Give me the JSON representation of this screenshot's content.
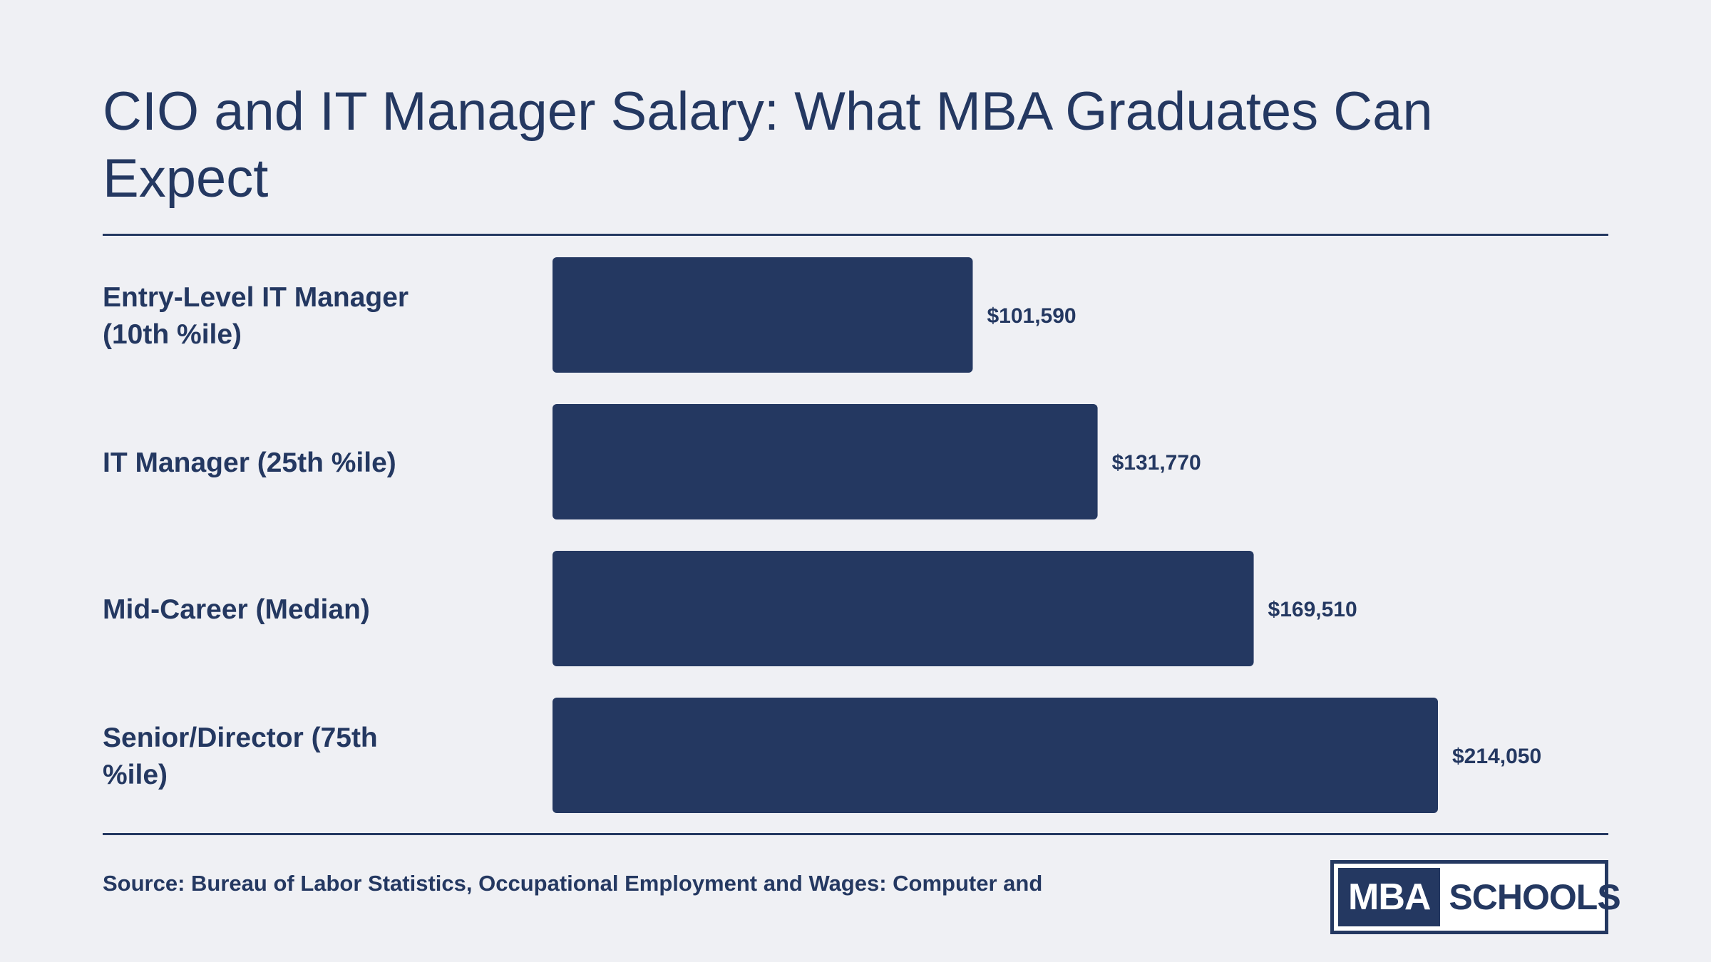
{
  "title": "CIO and IT Manager Salary: What MBA Graduates Can Expect",
  "source": "Source: Bureau of Labor Statistics, Occupational Employment and Wages: Computer and",
  "logo": {
    "left_text": "MBA",
    "right_text": "SCHOOLS"
  },
  "colors": {
    "accent": "#243861",
    "background": "#eff0f4"
  },
  "chart_data": {
    "type": "bar",
    "orientation": "horizontal",
    "title": "CIO and IT Manager Salary: What MBA Graduates Can Expect",
    "categories": [
      [
        "Entry-Level IT Manager",
        "(10th %ile)"
      ],
      [
        "IT Manager (25th %ile)"
      ],
      [
        "Mid-Career (Median)"
      ],
      [
        "Senior/Director (75th",
        "%ile)"
      ]
    ],
    "values": [
      101590,
      131770,
      169510,
      214050
    ],
    "value_labels": [
      "$101,590",
      "$131,770",
      "$169,510",
      "$214,050"
    ],
    "xlim": [
      0,
      214050
    ],
    "grid": false,
    "legend": "none"
  }
}
